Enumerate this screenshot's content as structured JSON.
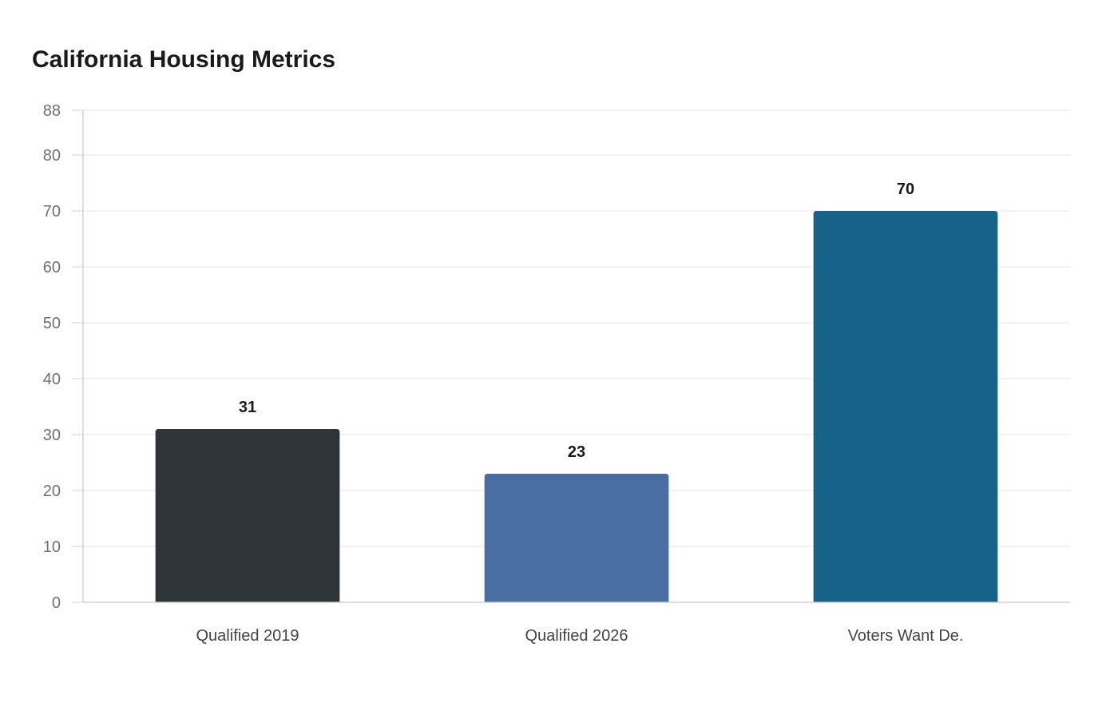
{
  "chart_data": {
    "type": "bar",
    "title": "California Housing Metrics",
    "xlabel": "",
    "ylabel": "",
    "categories": [
      "Qualified 2019",
      "Qualified 2026",
      "Voters Want De."
    ],
    "values": [
      31,
      23,
      70
    ],
    "data_labels": [
      "31",
      "23",
      "70"
    ],
    "colors": [
      "#2e3538",
      "#4a6ea3",
      "#176289"
    ],
    "ylim": [
      0,
      88
    ],
    "y_ticks": [
      0,
      10,
      20,
      30,
      40,
      50,
      60,
      70,
      80,
      88
    ],
    "y_tick_labels": [
      "0",
      "10",
      "20",
      "30",
      "40",
      "50",
      "60",
      "70",
      "80",
      "88"
    ],
    "grid": true,
    "legend": "none"
  }
}
